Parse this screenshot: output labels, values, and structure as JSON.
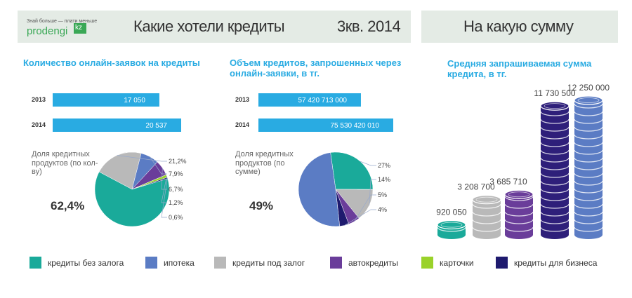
{
  "header": {
    "tagline": "Знай больше — плати меньше",
    "logo": "prodengi",
    "logo_suffix": "kz",
    "title": "Какие хотели кредиты",
    "period": "3кв. 2014",
    "title_right": "На какую сумму"
  },
  "legend": {
    "items": [
      {
        "name": "кредиты без залога",
        "color": "#1aaa9a"
      },
      {
        "name": "ипотека",
        "color": "#5b7cc4"
      },
      {
        "name": "кредиты под залог",
        "color": "#b9b9b9"
      },
      {
        "name": "автокредиты",
        "color": "#6a3d9a"
      },
      {
        "name": "карточки",
        "color": "#9ad22a"
      },
      {
        "name": "кредиты для бизнеса",
        "color": "#1e1a6e"
      }
    ]
  },
  "chart_data": [
    {
      "type": "bar",
      "orientation": "horizontal",
      "title": "Количество онлайн-заявок на кредиты",
      "categories": [
        "2013",
        "2014"
      ],
      "values": [
        17050,
        20537
      ],
      "value_labels": [
        "17 050",
        "20 537"
      ],
      "color": "#29abe2"
    },
    {
      "type": "bar",
      "orientation": "horizontal",
      "title": "Объем кредитов, запрошенных через онлайн-заявки, в тг.",
      "categories": [
        "2013",
        "2014"
      ],
      "values": [
        57420713000,
        75530420010
      ],
      "value_labels": [
        "57 420 713 000",
        "75 530 420 010"
      ],
      "color": "#29abe2"
    },
    {
      "type": "pie",
      "caption": "Доля кредитных продуктов (по кол-ву)",
      "values": [
        62.4,
        7.9,
        21.2,
        6.7,
        1.2,
        0.6
      ],
      "value_labels": [
        "62,4%",
        "7,9%",
        "21,2%",
        "6,7%",
        "1,2%",
        "0,6%"
      ]
    },
    {
      "type": "pie",
      "caption": "Доля кредитных продуктов (по сумме)",
      "values": [
        27,
        49,
        14,
        5,
        null,
        4
      ],
      "value_labels": [
        "27%",
        "49%",
        "14%",
        "5%",
        null,
        "4%"
      ]
    },
    {
      "type": "coins",
      "title": "Средняя запрашиваемая сумма кредита, в тг.",
      "values": [
        920050,
        3208700,
        3685710,
        11730500,
        12250000
      ],
      "value_labels": [
        "920 050",
        "3 208 700",
        "3 685 710",
        "11 730 500",
        "12 250 000"
      ],
      "colors": [
        "#1aaa9a",
        "#b9b9b9",
        "#6a3d9a",
        "#2e1f7a",
        "#5b7cc4"
      ]
    }
  ]
}
